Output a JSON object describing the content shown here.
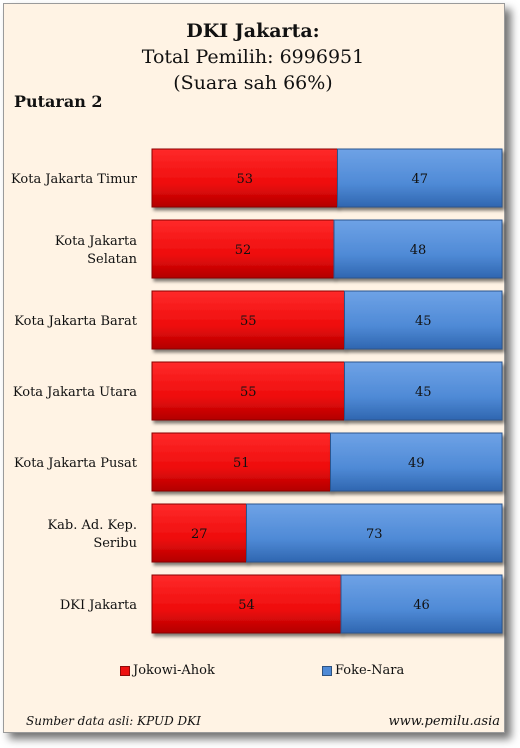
{
  "chart_data": {
    "type": "bar",
    "orientation": "horizontal",
    "stacked": true,
    "title": "DKI Jakarta:",
    "subtitle_lines": [
      "Total Pemilih: 6996951",
      "(Suara sah 66%)"
    ],
    "panel_label": "Putaran 2",
    "categories": [
      "Kota Jakarta Timur",
      "Kota Jakarta Selatan",
      "Kota Jakarta Barat",
      "Kota Jakarta Utara",
      "Kota Jakarta Pusat",
      "Kab. Ad. Kep. Seribu",
      "DKI Jakarta"
    ],
    "category_lines": [
      [
        "Kota Jakarta Timur"
      ],
      [
        "Kota Jakarta",
        "Selatan"
      ],
      [
        "Kota Jakarta Barat"
      ],
      [
        "Kota Jakarta Utara"
      ],
      [
        "Kota Jakarta Pusat"
      ],
      [
        "Kab. Ad. Kep.",
        "Seribu"
      ],
      [
        "DKI Jakarta"
      ]
    ],
    "series": [
      {
        "name": "Jokowi-Ahok",
        "color": "#ee1111",
        "values": [
          53,
          52,
          55,
          55,
          51,
          27,
          54
        ]
      },
      {
        "name": "Foke-Nara",
        "color": "#4f8ad6",
        "values": [
          47,
          48,
          45,
          45,
          49,
          73,
          46
        ]
      }
    ],
    "xlim": [
      0,
      100
    ],
    "legend_position": "bottom",
    "grid": false
  },
  "footer": {
    "source": "Sumber data asli: KPUD DKI",
    "site": "www.pemilu.asia"
  }
}
